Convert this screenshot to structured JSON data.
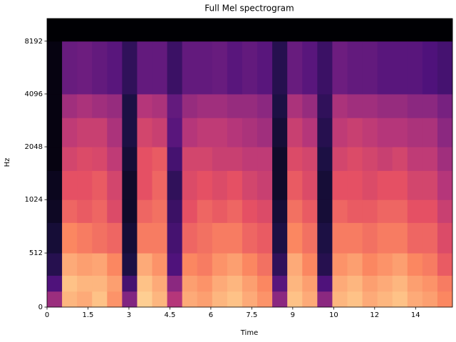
{
  "chart_data": {
    "type": "heatmap",
    "title": "Full Mel spectrogram",
    "x_label": "Time",
    "y_label": "Hz",
    "colormap": "magma",
    "zlim": [
      -80,
      0
    ],
    "yscale": "symlog",
    "linthresh": 1000,
    "base": 2,
    "xlim": [
      0,
      14.85
    ],
    "ylim": [
      0,
      11025
    ],
    "xticks": [
      0,
      1.5,
      3,
      4.5,
      6,
      7.5,
      9,
      {
        "value": 10.5,
        "label": "10"
      },
      12,
      {
        "value": 13.5,
        "label": "14"
      }
    ],
    "yticks": [
      0,
      512,
      1024,
      2048,
      4096,
      8192
    ],
    "x_edges": [
      0,
      0.55,
      1.1,
      1.65,
      2.2,
      2.75,
      3.3,
      3.85,
      4.4,
      4.95,
      5.5,
      6.05,
      6.6,
      7.15,
      7.7,
      8.25,
      8.8,
      9.35,
      9.9,
      10.45,
      11,
      11.55,
      12.1,
      12.65,
      13.2,
      13.75,
      14.3,
      14.85
    ],
    "y_edges": [
      0,
      150,
      300,
      512,
      800,
      1024,
      1500,
      2048,
      3000,
      4096,
      8192,
      11025
    ],
    "z": [
      [
        -45,
        -60,
        -68,
        -72,
        -75,
        -76,
        -78,
        -78,
        -78,
        -78,
        -80
      ],
      [
        -12,
        -10,
        -14,
        -20,
        -26,
        -30,
        -34,
        -38,
        -44,
        -55,
        -80
      ],
      [
        -14,
        -12,
        -16,
        -22,
        -28,
        -30,
        -32,
        -36,
        -42,
        -54,
        -80
      ],
      [
        -10,
        -12,
        -15,
        -24,
        -26,
        -28,
        -33,
        -36,
        -44,
        -56,
        -80
      ],
      [
        -18,
        -16,
        -20,
        -26,
        -32,
        -34,
        -38,
        -42,
        -46,
        -58,
        -80
      ],
      [
        -50,
        -62,
        -70,
        -72,
        -74,
        -74,
        -72,
        -70,
        -70,
        -66,
        -80
      ],
      [
        -8,
        -10,
        -14,
        -22,
        -26,
        -30,
        -30,
        -34,
        -40,
        -56,
        -80
      ],
      [
        -12,
        -14,
        -18,
        -22,
        -24,
        -26,
        -28,
        -36,
        -42,
        -56,
        -80
      ],
      [
        -40,
        -48,
        -60,
        -62,
        -64,
        -66,
        -62,
        -58,
        -56,
        -64,
        -80
      ],
      [
        -14,
        -16,
        -20,
        -26,
        -30,
        -32,
        -34,
        -40,
        -46,
        -56,
        -80
      ],
      [
        -16,
        -18,
        -22,
        -24,
        -26,
        -30,
        -34,
        -38,
        -44,
        -56,
        -80
      ],
      [
        -12,
        -14,
        -18,
        -22,
        -28,
        -32,
        -36,
        -38,
        -44,
        -55,
        -80
      ],
      [
        -10,
        -12,
        -16,
        -22,
        -26,
        -30,
        -36,
        -40,
        -46,
        -58,
        -80
      ],
      [
        -14,
        -16,
        -20,
        -26,
        -30,
        -34,
        -38,
        -42,
        -46,
        -56,
        -80
      ],
      [
        -18,
        -20,
        -24,
        -28,
        -32,
        -36,
        -38,
        -44,
        -48,
        -58,
        -80
      ],
      [
        -48,
        -58,
        -66,
        -70,
        -72,
        -74,
        -74,
        -72,
        -70,
        -68,
        -80
      ],
      [
        -10,
        -12,
        -14,
        -20,
        -24,
        -28,
        -32,
        -36,
        -42,
        -55,
        -80
      ],
      [
        -14,
        -16,
        -20,
        -24,
        -28,
        -32,
        -34,
        -40,
        -46,
        -58,
        -80
      ],
      [
        -48,
        -60,
        -68,
        -70,
        -72,
        -72,
        -70,
        -68,
        -66,
        -64,
        -80
      ],
      [
        -12,
        -14,
        -18,
        -22,
        -26,
        -30,
        -34,
        -38,
        -42,
        -54,
        -80
      ],
      [
        -10,
        -12,
        -16,
        -22,
        -28,
        -30,
        -32,
        -36,
        -44,
        -56,
        -80
      ],
      [
        -14,
        -16,
        -20,
        -24,
        -28,
        -32,
        -34,
        -38,
        -44,
        -56,
        -80
      ],
      [
        -12,
        -14,
        -18,
        -22,
        -26,
        -30,
        -36,
        -40,
        -46,
        -58,
        -80
      ],
      [
        -10,
        -12,
        -16,
        -22,
        -26,
        -30,
        -34,
        -40,
        -46,
        -58,
        -80
      ],
      [
        -14,
        -16,
        -20,
        -26,
        -30,
        -34,
        -38,
        -42,
        -48,
        -58,
        -80
      ],
      [
        -16,
        -18,
        -22,
        -26,
        -30,
        -34,
        -38,
        -42,
        -48,
        -60,
        -80
      ],
      [
        -20,
        -22,
        -28,
        -32,
        -36,
        -40,
        -44,
        -48,
        -52,
        -62,
        -80
      ]
    ]
  }
}
